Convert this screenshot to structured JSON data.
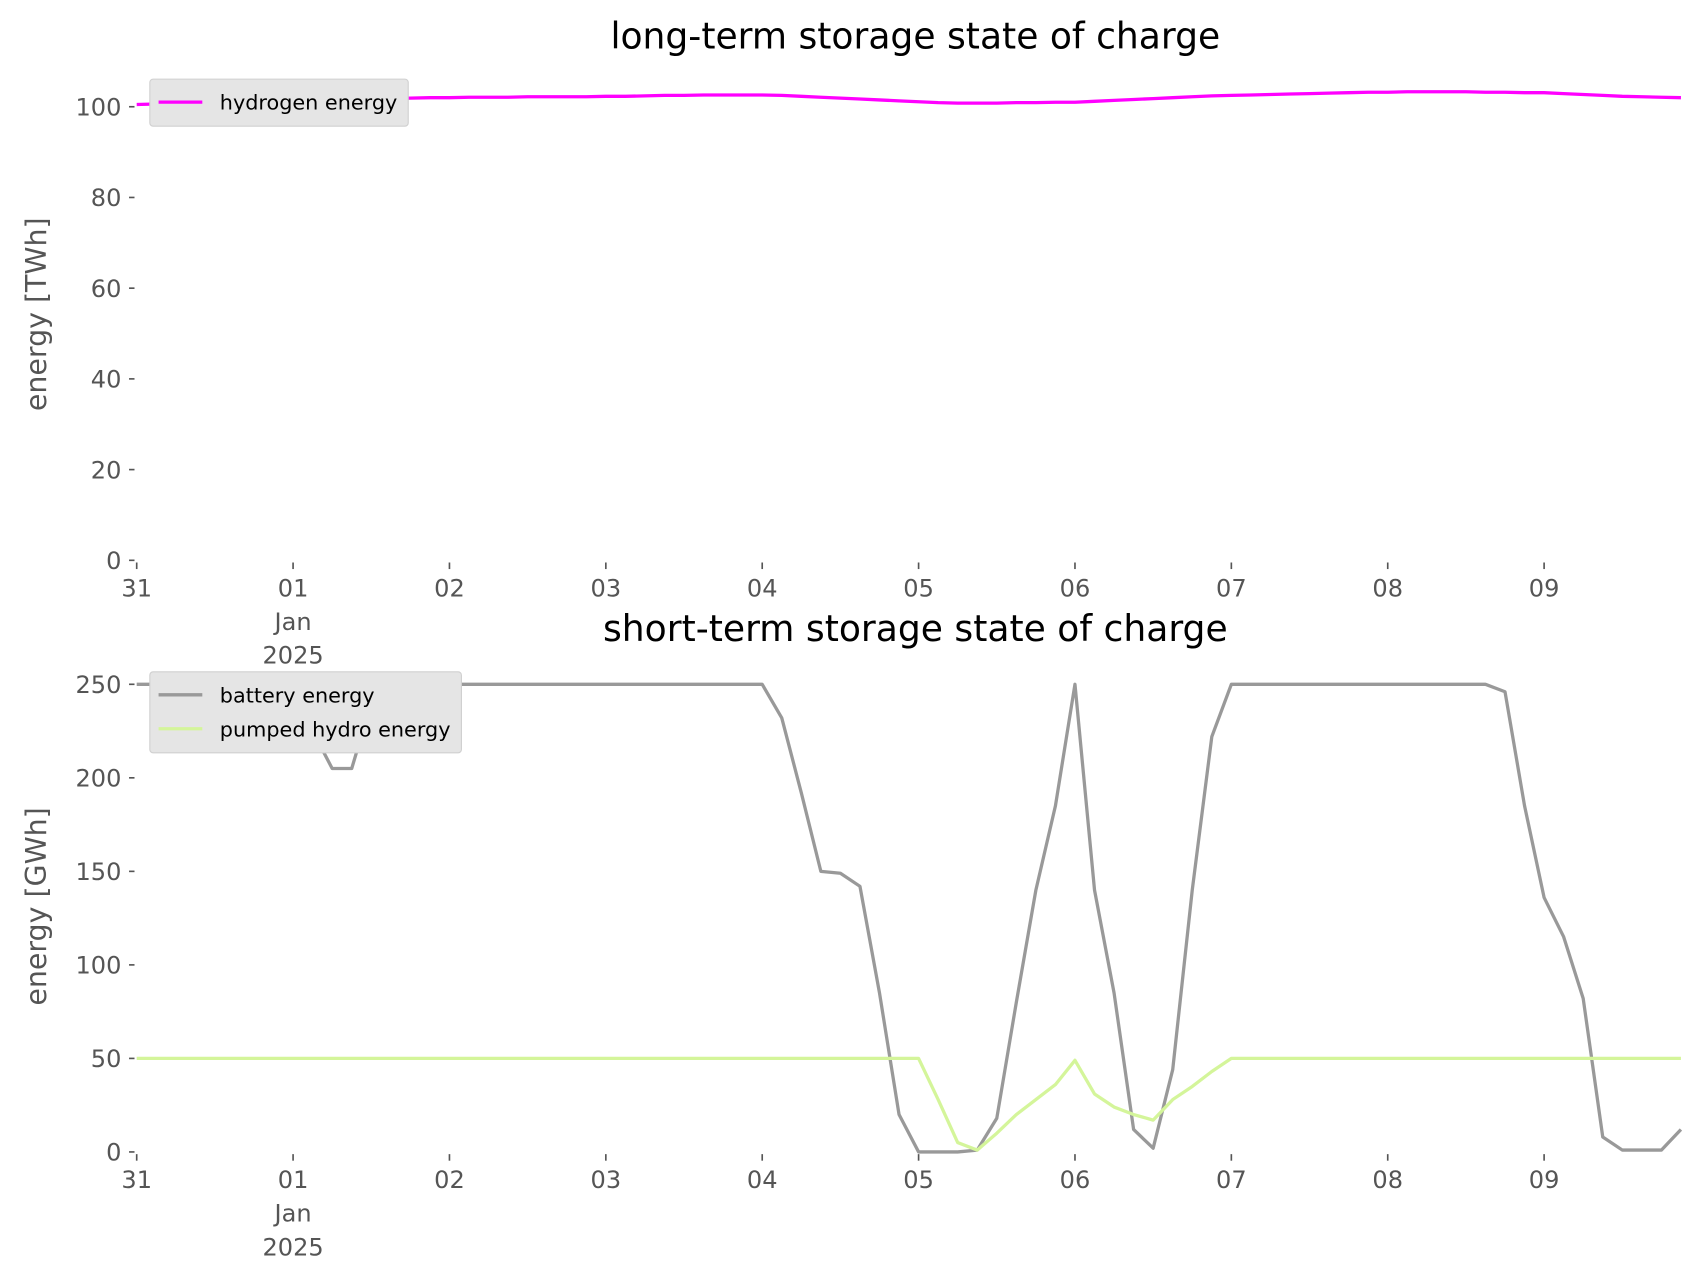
{
  "chart_data": [
    {
      "type": "line",
      "title": "long-term storage state of charge",
      "ylabel": "energy [TWh]",
      "x": [
        "2024-12-31T00:00",
        "2024-12-31T03:00",
        "2024-12-31T06:00",
        "2024-12-31T09:00",
        "2024-12-31T12:00",
        "2024-12-31T15:00",
        "2024-12-31T18:00",
        "2024-12-31T21:00",
        "2025-01-01T00:00",
        "2025-01-01T03:00",
        "2025-01-01T06:00",
        "2025-01-01T09:00",
        "2025-01-01T12:00",
        "2025-01-01T15:00",
        "2025-01-01T18:00",
        "2025-01-01T21:00",
        "2025-01-02T00:00",
        "2025-01-02T03:00",
        "2025-01-02T06:00",
        "2025-01-02T09:00",
        "2025-01-02T12:00",
        "2025-01-02T15:00",
        "2025-01-02T18:00",
        "2025-01-02T21:00",
        "2025-01-03T00:00",
        "2025-01-03T03:00",
        "2025-01-03T06:00",
        "2025-01-03T09:00",
        "2025-01-03T12:00",
        "2025-01-03T15:00",
        "2025-01-03T18:00",
        "2025-01-03T21:00",
        "2025-01-04T00:00",
        "2025-01-04T03:00",
        "2025-01-04T06:00",
        "2025-01-04T09:00",
        "2025-01-04T12:00",
        "2025-01-04T15:00",
        "2025-01-04T18:00",
        "2025-01-04T21:00",
        "2025-01-05T00:00",
        "2025-01-05T03:00",
        "2025-01-05T06:00",
        "2025-01-05T09:00",
        "2025-01-05T12:00",
        "2025-01-05T15:00",
        "2025-01-05T18:00",
        "2025-01-05T21:00",
        "2025-01-06T00:00",
        "2025-01-06T03:00",
        "2025-01-06T06:00",
        "2025-01-06T09:00",
        "2025-01-06T12:00",
        "2025-01-06T15:00",
        "2025-01-06T18:00",
        "2025-01-06T21:00",
        "2025-01-07T00:00",
        "2025-01-07T03:00",
        "2025-01-07T06:00",
        "2025-01-07T09:00",
        "2025-01-07T12:00",
        "2025-01-07T15:00",
        "2025-01-07T18:00",
        "2025-01-07T21:00",
        "2025-01-08T00:00",
        "2025-01-08T03:00",
        "2025-01-08T06:00",
        "2025-01-08T09:00",
        "2025-01-08T12:00",
        "2025-01-08T15:00",
        "2025-01-08T18:00",
        "2025-01-08T21:00",
        "2025-01-09T00:00",
        "2025-01-09T03:00",
        "2025-01-09T06:00",
        "2025-01-09T09:00",
        "2025-01-09T12:00",
        "2025-01-09T15:00",
        "2025-01-09T18:00",
        "2025-01-09T21:00"
      ],
      "xlim": [
        "2024-12-31T00:00",
        "2025-01-09T23:00"
      ],
      "xticks": [
        {
          "value": "2024-12-31T00:00",
          "label": "31"
        },
        {
          "value": "2025-01-01T00:00",
          "label": "01\nJan\n2025"
        },
        {
          "value": "2025-01-02T00:00",
          "label": "02"
        },
        {
          "value": "2025-01-03T00:00",
          "label": "03"
        },
        {
          "value": "2025-01-04T00:00",
          "label": "04"
        },
        {
          "value": "2025-01-05T00:00",
          "label": "05"
        },
        {
          "value": "2025-01-06T00:00",
          "label": "06"
        },
        {
          "value": "2025-01-07T00:00",
          "label": "07"
        },
        {
          "value": "2025-01-08T00:00",
          "label": "08"
        },
        {
          "value": "2025-01-09T00:00",
          "label": "09"
        }
      ],
      "ylim": [
        0,
        108.5
      ],
      "yticks": [
        0,
        20,
        40,
        60,
        80,
        100
      ],
      "legend": "upper left",
      "series": [
        {
          "name": "hydrogen energy",
          "color": "#ff00ff",
          "values": [
            100.5,
            100.6,
            100.7,
            100.8,
            100.9,
            101.0,
            101.1,
            101.2,
            101.3,
            101.4,
            101.5,
            101.6,
            101.7,
            101.8,
            101.9,
            102.0,
            102.0,
            102.1,
            102.1,
            102.1,
            102.2,
            102.2,
            102.2,
            102.2,
            102.3,
            102.3,
            102.4,
            102.5,
            102.5,
            102.6,
            102.6,
            102.6,
            102.6,
            102.5,
            102.3,
            102.1,
            101.9,
            101.7,
            101.5,
            101.3,
            101.1,
            100.9,
            100.8,
            100.8,
            100.8,
            100.9,
            100.9,
            101.0,
            101.0,
            101.2,
            101.4,
            101.6,
            101.8,
            102.0,
            102.2,
            102.4,
            102.5,
            102.6,
            102.7,
            102.8,
            102.9,
            103.0,
            103.1,
            103.2,
            103.2,
            103.3,
            103.3,
            103.3,
            103.3,
            103.2,
            103.2,
            103.1,
            103.1,
            102.9,
            102.7,
            102.5,
            102.3,
            102.2,
            102.1,
            102.0
          ]
        }
      ]
    },
    {
      "type": "line",
      "title": "short-term storage state of charge",
      "ylabel": "energy [GWh]",
      "x": [
        "2024-12-31T00:00",
        "2024-12-31T03:00",
        "2024-12-31T06:00",
        "2024-12-31T09:00",
        "2024-12-31T12:00",
        "2024-12-31T15:00",
        "2024-12-31T18:00",
        "2024-12-31T21:00",
        "2025-01-01T00:00",
        "2025-01-01T03:00",
        "2025-01-01T06:00",
        "2025-01-01T09:00",
        "2025-01-01T12:00",
        "2025-01-01T15:00",
        "2025-01-01T18:00",
        "2025-01-01T21:00",
        "2025-01-02T00:00",
        "2025-01-02T03:00",
        "2025-01-02T06:00",
        "2025-01-02T09:00",
        "2025-01-02T12:00",
        "2025-01-02T15:00",
        "2025-01-02T18:00",
        "2025-01-02T21:00",
        "2025-01-03T00:00",
        "2025-01-03T03:00",
        "2025-01-03T06:00",
        "2025-01-03T09:00",
        "2025-01-03T12:00",
        "2025-01-03T15:00",
        "2025-01-03T18:00",
        "2025-01-03T21:00",
        "2025-01-04T00:00",
        "2025-01-04T03:00",
        "2025-01-04T06:00",
        "2025-01-04T09:00",
        "2025-01-04T12:00",
        "2025-01-04T15:00",
        "2025-01-04T18:00",
        "2025-01-04T21:00",
        "2025-01-05T00:00",
        "2025-01-05T03:00",
        "2025-01-05T06:00",
        "2025-01-05T09:00",
        "2025-01-05T12:00",
        "2025-01-05T15:00",
        "2025-01-05T18:00",
        "2025-01-05T21:00",
        "2025-01-06T00:00",
        "2025-01-06T03:00",
        "2025-01-06T06:00",
        "2025-01-06T09:00",
        "2025-01-06T12:00",
        "2025-01-06T15:00",
        "2025-01-06T18:00",
        "2025-01-06T21:00",
        "2025-01-07T00:00",
        "2025-01-07T03:00",
        "2025-01-07T06:00",
        "2025-01-07T09:00",
        "2025-01-07T12:00",
        "2025-01-07T15:00",
        "2025-01-07T18:00",
        "2025-01-07T21:00",
        "2025-01-08T00:00",
        "2025-01-08T03:00",
        "2025-01-08T06:00",
        "2025-01-08T09:00",
        "2025-01-08T12:00",
        "2025-01-08T15:00",
        "2025-01-08T18:00",
        "2025-01-08T21:00",
        "2025-01-09T00:00",
        "2025-01-09T03:00",
        "2025-01-09T06:00",
        "2025-01-09T09:00",
        "2025-01-09T12:00",
        "2025-01-09T15:00",
        "2025-01-09T18:00",
        "2025-01-09T21:00"
      ],
      "xlim": [
        "2024-12-31T00:00",
        "2025-01-09T23:00"
      ],
      "xticks": [
        {
          "value": "2024-12-31T00:00",
          "label": "31"
        },
        {
          "value": "2025-01-01T00:00",
          "label": "01\nJan\n2025"
        },
        {
          "value": "2025-01-02T00:00",
          "label": "02"
        },
        {
          "value": "2025-01-03T00:00",
          "label": "03"
        },
        {
          "value": "2025-01-04T00:00",
          "label": "04"
        },
        {
          "value": "2025-01-05T00:00",
          "label": "05"
        },
        {
          "value": "2025-01-06T00:00",
          "label": "06"
        },
        {
          "value": "2025-01-07T00:00",
          "label": "07"
        },
        {
          "value": "2025-01-08T00:00",
          "label": "08"
        },
        {
          "value": "2025-01-09T00:00",
          "label": "09"
        }
      ],
      "ylim": [
        0,
        262.5
      ],
      "yticks": [
        0,
        50,
        100,
        150,
        200,
        250
      ],
      "legend": "upper left",
      "series": [
        {
          "name": "battery energy",
          "color": "#999999",
          "values": [
            250,
            250,
            250,
            250,
            250,
            250,
            250,
            250,
            250,
            225,
            205,
            205,
            240,
            250,
            250,
            250,
            250,
            250,
            250,
            250,
            250,
            250,
            250,
            250,
            250,
            250,
            250,
            250,
            250,
            250,
            250,
            250,
            250,
            232,
            192,
            150,
            149,
            142,
            85,
            20,
            0,
            0,
            0,
            1,
            18,
            80,
            140,
            185,
            250,
            140,
            85,
            12,
            2,
            44,
            140,
            222,
            250,
            250,
            250,
            250,
            250,
            250,
            250,
            250,
            250,
            250,
            250,
            250,
            250,
            250,
            246,
            185,
            136,
            115,
            82,
            8,
            1,
            1,
            1,
            12
          ]
        },
        {
          "name": "pumped hydro energy",
          "color": "#d4f59a",
          "values": [
            50,
            50,
            50,
            50,
            50,
            50,
            50,
            50,
            50,
            50,
            50,
            50,
            50,
            50,
            50,
            50,
            50,
            50,
            50,
            50,
            50,
            50,
            50,
            50,
            50,
            50,
            50,
            50,
            50,
            50,
            50,
            50,
            50,
            50,
            50,
            50,
            50,
            50,
            50,
            50,
            50,
            28,
            5,
            1,
            10,
            20,
            28,
            36,
            49,
            31,
            24,
            20,
            17,
            28,
            35,
            43,
            50,
            50,
            50,
            50,
            50,
            50,
            50,
            50,
            50,
            50,
            50,
            50,
            50,
            50,
            50,
            50,
            50,
            50,
            50,
            50,
            50,
            50,
            50,
            50
          ]
        }
      ]
    }
  ]
}
